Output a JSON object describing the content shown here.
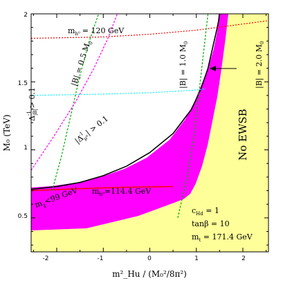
{
  "chart_data": {
    "type": "line",
    "xlabel": "m²_Hu / (M₀²/8π²)",
    "ylabel": "M₀ (TeV)",
    "xlim": [
      -2.55,
      2.55
    ],
    "ylim": [
      0.25,
      2.0
    ],
    "x_ticks": [
      "-2",
      "-1",
      "0",
      "1",
      "2"
    ],
    "y_ticks": [
      "0.5",
      "1",
      "1.5",
      "2"
    ],
    "grid": false,
    "regions": [
      {
        "name": "No EWSB",
        "color": "#ffff99"
      },
      {
        "name": "excluded band",
        "color": "#ff00ff"
      }
    ],
    "series": [
      {
        "color": "#000000",
        "x": [
          -2.55,
          -2.0,
          -1.5,
          -1.0,
          -0.5,
          0.0,
          0.5,
          0.9,
          1.1,
          1.25,
          1.35,
          1.45,
          1.48,
          1.5
        ],
        "y": [
          0.71,
          0.73,
          0.76,
          0.81,
          0.88,
          0.98,
          1.12,
          1.3,
          1.45,
          1.6,
          1.75,
          1.9,
          1.95,
          2.0
        ]
      },
      {
        "color": "#ff0000",
        "x": [
          -2.55,
          -1.5,
          -0.5,
          0.5
        ],
        "y": [
          0.7,
          0.715,
          0.725,
          0.73
        ]
      },
      {
        "color": "#ff0000",
        "x": [
          -2.55,
          -1.0,
          0.0,
          1.0,
          2.55
        ],
        "y": [
          1.82,
          1.83,
          1.85,
          1.88,
          1.95
        ]
      },
      {
        "color": "#00ffff",
        "x": [
          -2.55,
          -1.0,
          0.0,
          1.0,
          1.2
        ],
        "y": [
          1.4,
          1.41,
          1.42,
          1.44,
          1.45
        ]
      },
      {
        "color": "#00aa00",
        "x": [
          -2.1,
          -1.9,
          -1.7,
          -1.5,
          -1.3,
          -1.1
        ],
        "y": [
          0.7,
          0.95,
          1.25,
          1.55,
          1.8,
          2.0
        ]
      },
      {
        "color": "#00aa00",
        "x": [
          0.6,
          0.8,
          0.95,
          1.05,
          1.15,
          1.25
        ],
        "y": [
          0.5,
          0.8,
          1.1,
          1.4,
          1.7,
          2.0
        ]
      },
      {
        "color": "#ff00ff",
        "x": [
          -2.55,
          -2.1,
          -1.6,
          -1.2,
          -0.9,
          -0.7
        ],
        "y": [
          0.85,
          1.08,
          1.35,
          1.6,
          1.82,
          2.0
        ]
      },
      {
        "color": "#ff00ff",
        "x": [
          -1.6,
          -1.3,
          -1.0,
          -0.7,
          -0.4,
          -0.1,
          0.2,
          0.5,
          0.75,
          1.0,
          1.25,
          1.5
        ],
        "y": [
          0.44,
          0.46,
          0.48,
          0.5,
          0.55,
          0.6,
          0.66,
          0.76,
          0.88,
          1.05,
          1.25,
          1.5
        ]
      }
    ],
    "annotations": {
      "mh_120_pre": "m",
      "mh_120_sub": "h⁰",
      "mh_120_post": "= 120 GeV",
      "B05": "|B| = 0.5 M",
      "B05_sub": "0",
      "B10": "|B| = 1.0 M",
      "B10_sub": "0",
      "B20": "|B| = 2.0 M",
      "B20_sub": "0",
      "delta_B_pre": "Δ",
      "delta_B_sub": "|B|",
      "delta_B_sup": "-1",
      "delta_B_post": "> 0.1",
      "delta_mu_pre": "|Δ",
      "delta_mu_sub": "μ⁰",
      "delta_mu_sup": "-1",
      "delta_mu_post": "| > 0.1",
      "mchi_pre": "m",
      "mchi_sub": "χ",
      "mchi_post": "<99 GeV",
      "mh_114_pre": "m",
      "mh_114_sub": "h⁰",
      "mh_114_post": "=114.4 GeV",
      "no_ewsb": "No EWSB",
      "c_pre": "c",
      "c_sub": "Hd",
      "c_post": " = 1",
      "tanb": "tanβ = 10",
      "mt_pre": "m",
      "mt_sub": "t",
      "mt_post": " = 171.4 GeV"
    }
  }
}
